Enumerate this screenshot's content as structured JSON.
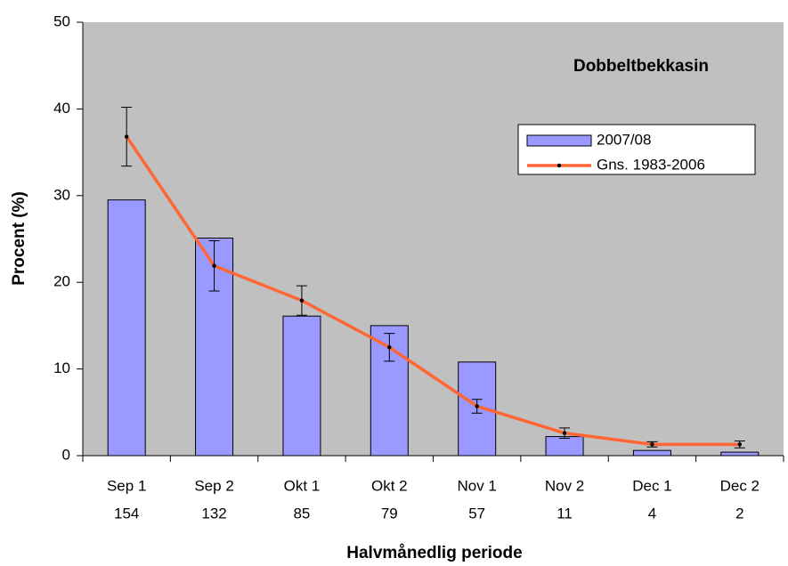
{
  "chart_data": {
    "type": "bar",
    "title": "Dobbeltbekkasin",
    "x_label": "Halvmånedlig periode",
    "y_label": "Procent (%)",
    "categories": [
      "Sep 1",
      "Sep 2",
      "Okt 1",
      "Okt 2",
      "Nov 1",
      "Nov 2",
      "Dec 1",
      "Dec 2"
    ],
    "category_counts": [
      154,
      132,
      85,
      79,
      57,
      11,
      4,
      2
    ],
    "series": [
      {
        "name": "2007/08",
        "type": "bar",
        "color": "#9999ff",
        "values": [
          29.5,
          25.1,
          16.1,
          15.0,
          10.8,
          2.2,
          0.6,
          0.4
        ]
      },
      {
        "name": "Gns. 1983-2006",
        "type": "line",
        "color": "#ff6633",
        "values": [
          36.8,
          21.9,
          17.9,
          12.5,
          5.7,
          2.6,
          1.3,
          1.3
        ],
        "errors": [
          3.4,
          2.9,
          1.7,
          1.6,
          0.8,
          0.6,
          0.3,
          0.4
        ]
      }
    ],
    "ylim": [
      0,
      50
    ],
    "yticks": [
      0,
      10,
      20,
      30,
      40,
      50
    ],
    "background": "#c0c0c0",
    "grid": false,
    "legend": "upper right"
  }
}
